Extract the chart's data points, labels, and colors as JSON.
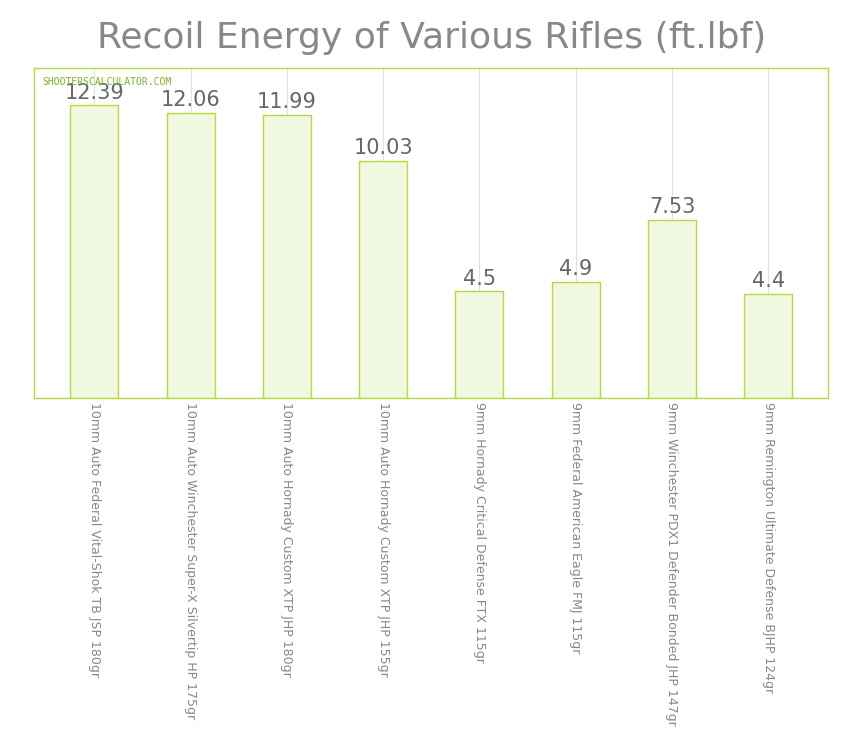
{
  "title": "Recoil Energy of Various Rifles (ft.lbf)",
  "categories": [
    "10mm Auto Federal Vital-Shok TB JSP 180gr",
    "10mm Auto Winchester Super-X Silvertip HP 175gr",
    "10mm Auto Hornady Custom XTP JHP 180gr",
    "10mm Auto Hornady Custom XTP JHP 155gr",
    "9mm Hornady Critical Defense FTX 115gr",
    "9mm Federal American Eagle FMJ 115gr",
    "9mm Winchester PDX1 Defender Bonded JHP 147gr",
    "9mm Remington Ultimate Defense BJHP 124gr"
  ],
  "values": [
    12.39,
    12.06,
    11.99,
    10.03,
    4.5,
    4.9,
    7.53,
    4.4
  ],
  "bar_color_fill": "#f0f9e0",
  "bar_color_edge": "#b8d840",
  "title_color": "#888888",
  "label_color": "#888888",
  "watermark": "SHOOTERSCALCULATOR.COM",
  "watermark_color": "#7ab520",
  "background_color": "#ffffff",
  "plot_bg_color": "#ffffff",
  "grid_color": "#d8e8d8",
  "spine_color": "#b8d840",
  "value_label_color": "#666666",
  "value_label_fontsize": 15,
  "tick_label_fontsize": 9,
  "title_fontsize": 26,
  "ylim": [
    0,
    14
  ],
  "bar_width": 0.5
}
